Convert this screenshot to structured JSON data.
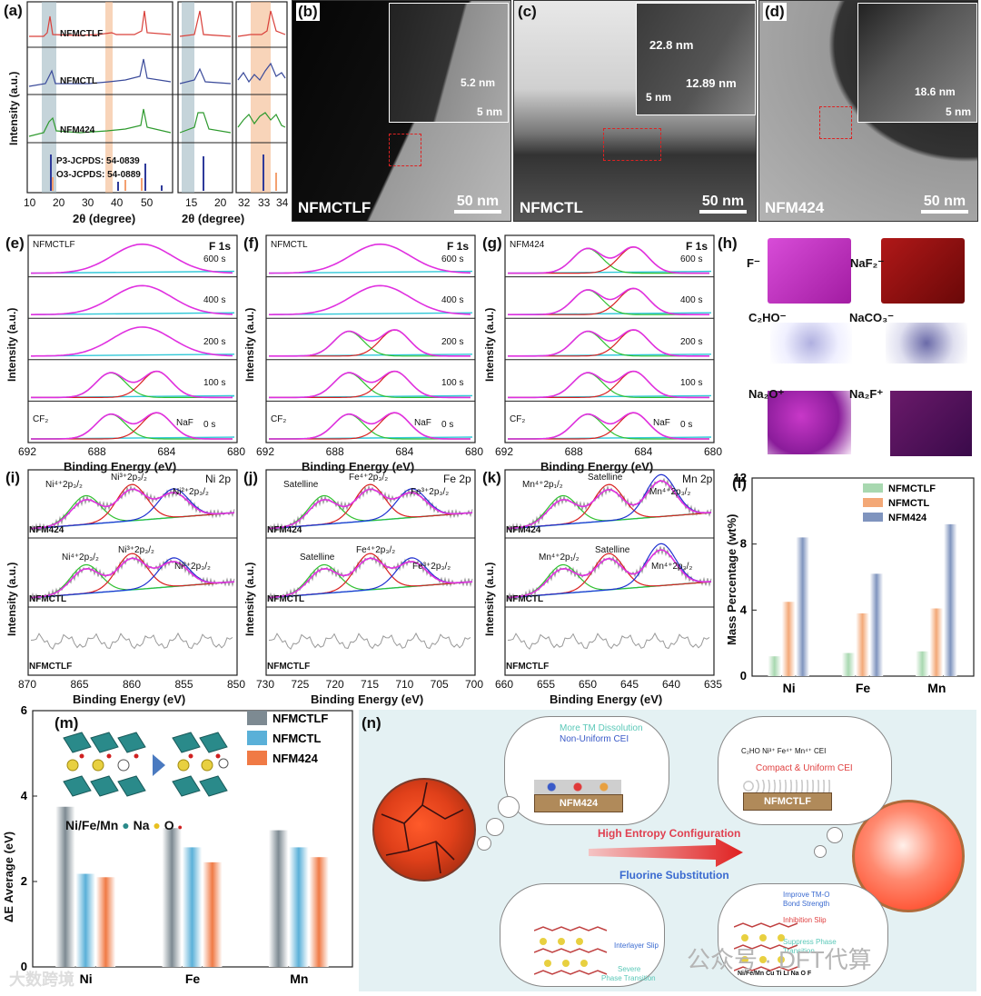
{
  "panel_a": {
    "label": "(a)",
    "ylabel": "Intensity (a.u.)",
    "xlabel": "2θ (degree)",
    "samples": [
      "NFMCTLF",
      "NFMCTL",
      "NFM424"
    ],
    "refs": [
      "P3-JCPDS: 54-0839",
      "O3-JCPDS: 54-0889"
    ],
    "ticks1": [
      "10",
      "20",
      "30",
      "40",
      "50"
    ],
    "ticks2": [
      "15",
      "20"
    ],
    "ticks3": [
      "32",
      "33",
      "34"
    ],
    "colors": {
      "NFMCTLF": "#d9403a",
      "NFMCTL": "#3a4a9a",
      "NFM424": "#2e9a2e"
    }
  },
  "panel_b": {
    "label": "(b)",
    "name": "NFMCTLF",
    "scale": "50 nm",
    "inset_scale": "5 nm",
    "thickness": "5.2 nm"
  },
  "panel_c": {
    "label": "(c)",
    "name": "NFMCTL",
    "scale": "50 nm",
    "inset_scale": "5 nm",
    "t1": "22.8 nm",
    "t2": "12.89 nm"
  },
  "panel_d": {
    "label": "(d)",
    "name": "NFM424",
    "scale": "50 nm",
    "inset_scale": "5 nm",
    "thickness": "18.6 nm"
  },
  "xps_f": {
    "ylabel": "Intensity (a.u.)",
    "xlabel": "Binding Energy (eV)",
    "ticks": [
      "692",
      "688",
      "684",
      "680"
    ],
    "times": [
      "600 s",
      "400 s",
      "200 s",
      "100 s",
      "0 s"
    ],
    "peak_cf2": "CF₂",
    "peak_naf": "NaF",
    "core": "F 1s",
    "panels": [
      {
        "label": "(e)",
        "sample": "NFMCTLF"
      },
      {
        "label": "(f)",
        "sample": "NFMCTL"
      },
      {
        "label": "(g)",
        "sample": "NFM424"
      }
    ]
  },
  "panel_h": {
    "label": "(h)",
    "species": [
      "F⁻",
      "NaF₂⁻",
      "C₂HO⁻",
      "NaCO₃⁻",
      "Na₂O⁺",
      "Na₂F⁺"
    ]
  },
  "xps_tm": {
    "ylabel": "Intensity (a.u.)",
    "xlabel": "Binding Energy (eV)",
    "samples": [
      "NFM424",
      "NFMCTL",
      "NFMCTLF"
    ],
    "panels": [
      {
        "label": "(i)",
        "core": "Ni 2p",
        "ticks": [
          "870",
          "865",
          "860",
          "855",
          "850"
        ],
        "peaks_top": [
          "Ni⁴⁺2p₃/₂",
          "Ni³⁺2p₃/₂",
          "Ni²⁺2p₃/₂"
        ],
        "peaks_mid": [
          "Ni⁴⁺2p₃/₂",
          "Ni³⁺2p₃/₂",
          "Ni²⁺2p₃/₂"
        ]
      },
      {
        "label": "(j)",
        "core": "Fe 2p",
        "ticks": [
          "730",
          "725",
          "720",
          "715",
          "710",
          "705",
          "700"
        ],
        "peaks_top": [
          "Satelline",
          "Fe⁴⁺2p₃/₂",
          "Fe³⁺2p₃/₂"
        ],
        "peaks_mid": [
          "Satelline",
          "Fe⁴⁺2p₃/₂",
          "Fe³⁺2p₃/₂"
        ]
      },
      {
        "label": "(k)",
        "core": "Mn 2p",
        "ticks": [
          "660",
          "655",
          "650",
          "645",
          "640",
          "635"
        ],
        "peaks_top": [
          "Mn⁴⁺2p₁/₂",
          "Satelline",
          "Mn⁴⁺2p₃/₂"
        ],
        "peaks_mid": [
          "Mn⁴⁺2p₁/₂",
          "Satelline",
          "Mn⁴⁺2p₃/₂"
        ]
      }
    ]
  },
  "chart_data": [
    {
      "type": "bar",
      "panel": "(l)",
      "title": "",
      "xlabel": "",
      "ylabel": "Mass Percentage (wt%)",
      "categories": [
        "Ni",
        "Fe",
        "Mn"
      ],
      "series": [
        {
          "name": "NFMCTLF",
          "values": [
            1.2,
            1.4,
            1.5
          ],
          "color": "#a8d8b0"
        },
        {
          "name": "NFMCTL",
          "values": [
            4.5,
            3.8,
            4.1
          ],
          "color": "#f3a877"
        },
        {
          "name": "NFM424",
          "values": [
            8.4,
            6.2,
            9.2
          ],
          "color": "#7f94be"
        }
      ],
      "ylim": [
        0,
        12
      ],
      "yticks": [
        "0",
        "4",
        "8",
        "12"
      ],
      "legend": "top-right"
    },
    {
      "type": "bar",
      "panel": "(m)",
      "title": "",
      "xlabel": "",
      "ylabel": "ΔE Average (eV)",
      "categories": [
        "Ni",
        "Fe",
        "Mn"
      ],
      "series": [
        {
          "name": "NFMCTLF",
          "values": [
            3.75,
            3.25,
            3.2
          ],
          "color": "#7d8a92"
        },
        {
          "name": "NFMCTL",
          "values": [
            2.18,
            2.8,
            2.8
          ],
          "color": "#5ab0d8"
        },
        {
          "name": "NFM424",
          "values": [
            2.1,
            2.45,
            2.57
          ],
          "color": "#f07a45"
        }
      ],
      "ylim": [
        0,
        6
      ],
      "yticks": [
        "0",
        "2",
        "4",
        "6"
      ],
      "legend": "top-right"
    }
  ],
  "panel_m": {
    "label": "(m)",
    "atoms_legend": "Ni/Fe/Mn",
    "na": "Na",
    "o": "O"
  },
  "panel_n": {
    "label": "(n)",
    "more_tm": "More TM Dissolution",
    "non_uniform": "Non-Uniform CEI",
    "nfm424": "NFM424",
    "legend_species": "C₂HO  Ni³⁺ Fe⁴⁺  Mn⁴⁺  CEI",
    "compact": "Compact & Uniform CEI",
    "nfmctlf": "NFMCTLF",
    "high_entropy": "High Entropy Configuration",
    "fluorine": "Fluorine Substitution",
    "interlayer": "Interlayer Slip",
    "severe": "Severe",
    "phase_transition": "Phase Transition",
    "improve": "Improve TM-O",
    "bond": "Bond Strength",
    "inhibition": "Inhibition Slip",
    "suppress": "Suppress Phase",
    "transition": "Transition",
    "atoms_row": "Ni/Fe/Mn Cu Ti  Li  Na O  F"
  },
  "watermarks": {
    "left": "大数跨境",
    "right": "公众号 · DFT代算"
  }
}
